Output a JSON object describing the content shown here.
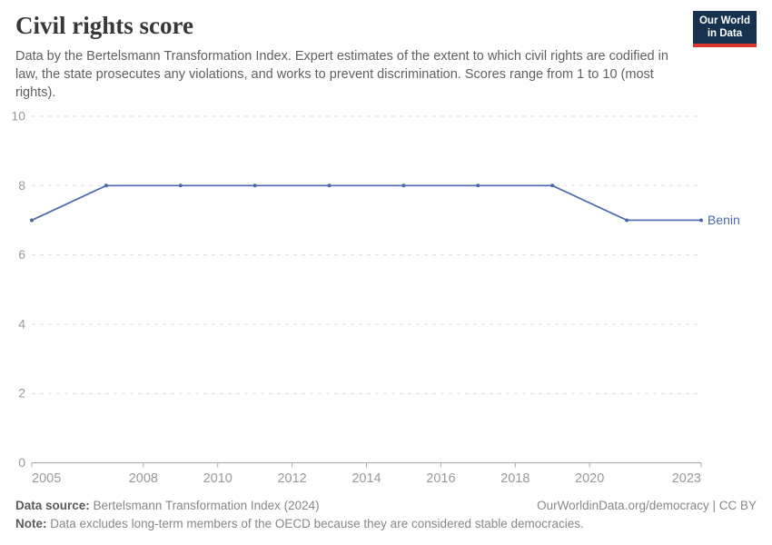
{
  "header": {
    "title": "Civil rights score",
    "subtitle": "Data by the Bertelsmann Transformation Index. Expert estimates of the extent to which civil rights are codified in law, the state prosecutes any violations, and works to prevent discrimination. Scores range from 1 to 10 (most rights).",
    "logo": {
      "line1": "Our World",
      "line2": "in Data"
    }
  },
  "chart_data": {
    "type": "line",
    "title": "Civil rights score",
    "series": [
      {
        "name": "Benin",
        "color": "#4A69AD",
        "x": [
          2005,
          2007,
          2009,
          2011,
          2013,
          2015,
          2017,
          2019,
          2021,
          2023
        ],
        "values": [
          7,
          8,
          8,
          8,
          8,
          8,
          8,
          8,
          7,
          7
        ]
      }
    ],
    "x_ticks": [
      2005,
      2008,
      2010,
      2012,
      2014,
      2016,
      2018,
      2020,
      2023
    ],
    "y_ticks": [
      0,
      2,
      4,
      6,
      8,
      10
    ],
    "xlim": [
      2005,
      2023
    ],
    "ylim": [
      0,
      10
    ],
    "xlabel": "",
    "ylabel": "",
    "grid": "horizontal-dashed",
    "legend_position": "end-of-line-label"
  },
  "footer": {
    "source_label": "Data source:",
    "source_text": "Bertelsmann Transformation Index (2024)",
    "note_label": "Note:",
    "note_text": "Data excludes long-term members of the OECD because they are considered stable democracies.",
    "link": "OurWorldinData.org/democracy | CC BY"
  },
  "colors": {
    "line": "#4A69AD",
    "gridline": "#dddddd",
    "axis_text": "#999999",
    "axis_line": "#a8a8a8",
    "logo_bg": "#16324f",
    "logo_accent": "#dc352b"
  }
}
